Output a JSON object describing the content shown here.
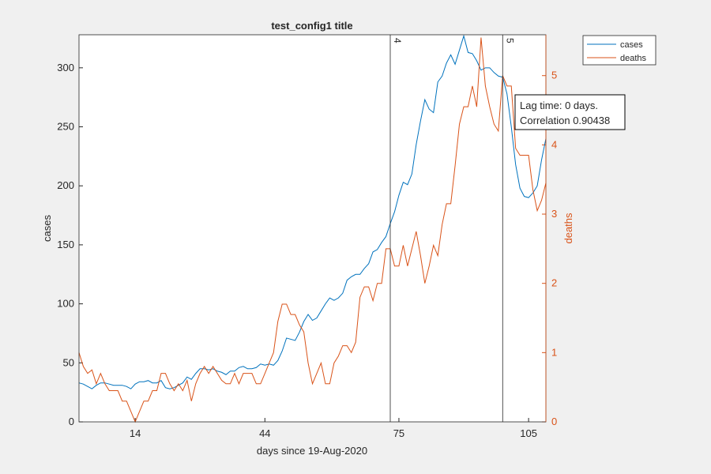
{
  "chart_data": {
    "type": "line",
    "title": "test_config1 title",
    "xlabel": "days since 19-Aug-2020",
    "ylabel": "cases",
    "y2label": "deaths",
    "x": [
      1,
      2,
      3,
      4,
      5,
      6,
      7,
      8,
      9,
      10,
      11,
      12,
      13,
      14,
      15,
      16,
      17,
      18,
      19,
      20,
      21,
      22,
      23,
      24,
      25,
      26,
      27,
      28,
      29,
      30,
      31,
      32,
      33,
      34,
      35,
      36,
      37,
      38,
      39,
      40,
      41,
      42,
      43,
      44,
      45,
      46,
      47,
      48,
      49,
      50,
      51,
      52,
      53,
      54,
      55,
      56,
      57,
      58,
      59,
      60,
      61,
      62,
      63,
      64,
      65,
      66,
      67,
      68,
      69,
      70,
      71,
      72,
      73,
      74,
      75,
      76,
      77,
      78,
      79,
      80,
      81,
      82,
      83,
      84,
      85,
      86,
      87,
      88,
      89,
      90,
      91,
      92,
      93,
      94,
      95,
      96,
      97,
      98,
      99,
      100,
      101,
      102,
      103,
      104,
      105,
      106,
      107,
      108,
      109
    ],
    "series": [
      {
        "name": "cases",
        "color": "#0072BD",
        "axis": "y",
        "values": [
          33,
          32,
          30,
          28,
          31,
          33,
          33,
          32,
          31,
          31,
          31,
          30,
          28,
          32,
          34,
          34,
          35,
          33,
          33,
          35,
          29,
          28,
          29,
          31,
          33,
          38,
          36,
          41,
          45,
          45,
          44,
          45,
          43,
          42,
          40,
          43,
          43,
          46,
          47,
          45,
          45,
          46,
          49,
          48,
          49,
          48,
          52,
          60,
          71,
          70,
          69,
          76,
          85,
          91,
          86,
          88,
          94,
          100,
          105,
          103,
          105,
          109,
          120,
          123,
          125,
          125,
          130,
          134,
          144,
          146,
          152,
          157,
          168,
          178,
          192,
          203,
          201,
          210,
          235,
          255,
          273,
          265,
          262,
          288,
          293,
          304,
          311,
          303,
          315,
          327,
          313,
          312,
          306,
          298,
          300,
          300,
          296,
          293,
          292,
          278,
          250,
          218,
          198,
          191,
          190,
          194,
          200,
          222,
          240
        ]
      },
      {
        "name": "deaths",
        "color": "#D95319",
        "axis": "y2",
        "values": [
          1.0,
          0.8,
          0.7,
          0.75,
          0.55,
          0.7,
          0.55,
          0.45,
          0.45,
          0.45,
          0.3,
          0.3,
          0.15,
          0,
          0.15,
          0.3,
          0.3,
          0.45,
          0.45,
          0.7,
          0.7,
          0.55,
          0.45,
          0.55,
          0.45,
          0.6,
          0.3,
          0.55,
          0.7,
          0.8,
          0.7,
          0.8,
          0.7,
          0.6,
          0.55,
          0.55,
          0.7,
          0.55,
          0.7,
          0.7,
          0.7,
          0.55,
          0.55,
          0.7,
          0.85,
          1.0,
          1.45,
          1.7,
          1.7,
          1.55,
          1.55,
          1.4,
          1.3,
          0.85,
          0.55,
          0.7,
          0.85,
          0.55,
          0.55,
          0.85,
          0.95,
          1.1,
          1.1,
          1.0,
          1.15,
          1.8,
          1.95,
          1.95,
          1.75,
          2.0,
          2.0,
          2.5,
          2.5,
          2.25,
          2.25,
          2.55,
          2.25,
          2.5,
          2.75,
          2.4,
          2.0,
          2.25,
          2.55,
          2.4,
          2.85,
          3.15,
          3.15,
          3.7,
          4.3,
          4.55,
          4.55,
          4.85,
          4.55,
          5.55,
          4.85,
          4.55,
          4.3,
          4.2,
          5.0,
          4.85,
          4.85,
          3.95,
          3.85,
          3.85,
          3.85,
          3.35,
          3.05,
          3.2,
          3.45
        ]
      }
    ],
    "xlim": [
      1,
      109
    ],
    "xticks": [
      14,
      44,
      75,
      105
    ],
    "ylim": [
      0,
      328
    ],
    "yticks": [
      0,
      50,
      100,
      150,
      200,
      250,
      300
    ],
    "y2lim": [
      0,
      5.59
    ],
    "y2ticks": [
      0,
      1,
      2,
      3,
      4,
      5
    ],
    "y2color": "#D95319",
    "vlines": [
      {
        "x": 73,
        "label": "4"
      },
      {
        "x": 99,
        "label": "5"
      }
    ],
    "annotation": [
      "Lag time: 0 days.",
      "Correlation 0.90438"
    ],
    "legend": "outside-top-right"
  }
}
